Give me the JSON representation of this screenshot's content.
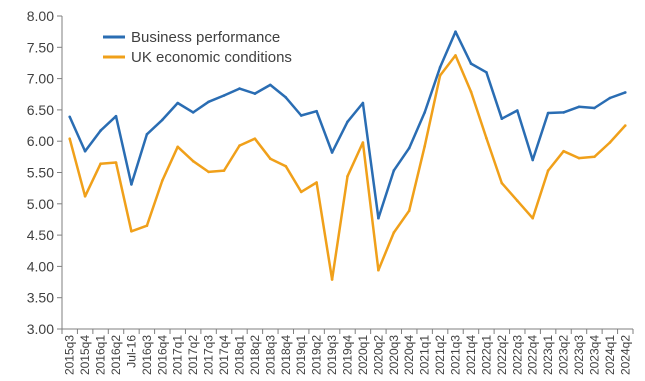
{
  "chart_data": {
    "type": "line",
    "categories": [
      "2015q3",
      "2015q4",
      "2016q1",
      "2016q2",
      "Jul-16",
      "2016q3",
      "2016q4",
      "2017q1",
      "2017q2",
      "2017q3",
      "2017q4",
      "2018q1",
      "2018q2",
      "2018q3",
      "2018q4",
      "2019q1",
      "2019q2",
      "2019q3",
      "2019q4",
      "2020q1",
      "2020q2",
      "2020q3",
      "2020q4",
      "2021q1",
      "2021q2",
      "2021q3",
      "2021q4",
      "2022q1",
      "2022q2",
      "2022q3",
      "2022q4",
      "2023q1",
      "2023q2",
      "2023q3",
      "2023q4",
      "2024q1",
      "2024q2"
    ],
    "series": [
      {
        "name": "Business performance",
        "color": "#2a6db3",
        "values": [
          6.39,
          5.84,
          6.17,
          6.4,
          5.31,
          6.11,
          6.34,
          6.61,
          6.46,
          6.63,
          6.73,
          6.84,
          6.76,
          6.9,
          6.7,
          6.41,
          6.48,
          5.82,
          6.31,
          6.61,
          4.77,
          5.53,
          5.89,
          6.46,
          7.18,
          7.75,
          7.24,
          7.1,
          6.36,
          6.49,
          5.7,
          6.45,
          6.46,
          6.55,
          6.53,
          6.69,
          6.78
        ]
      },
      {
        "name": "UK economic conditions",
        "color": "#f0a01a",
        "values": [
          6.04,
          5.12,
          5.64,
          5.66,
          4.56,
          4.65,
          5.37,
          5.91,
          5.68,
          5.51,
          5.53,
          5.93,
          6.04,
          5.72,
          5.6,
          5.19,
          5.34,
          3.79,
          5.44,
          5.98,
          3.94,
          4.54,
          4.89,
          5.92,
          7.05,
          7.37,
          6.79,
          6.05,
          5.33,
          5.05,
          4.77,
          5.53,
          5.84,
          5.73,
          5.75,
          5.98,
          6.25
        ]
      }
    ],
    "ylim": [
      3.0,
      8.0
    ],
    "yticks": [
      "3.00",
      "3.50",
      "4.00",
      "4.50",
      "5.00",
      "5.50",
      "6.00",
      "6.50",
      "7.00",
      "7.50",
      "8.00"
    ],
    "grid": false,
    "legend_position": "top-left"
  }
}
